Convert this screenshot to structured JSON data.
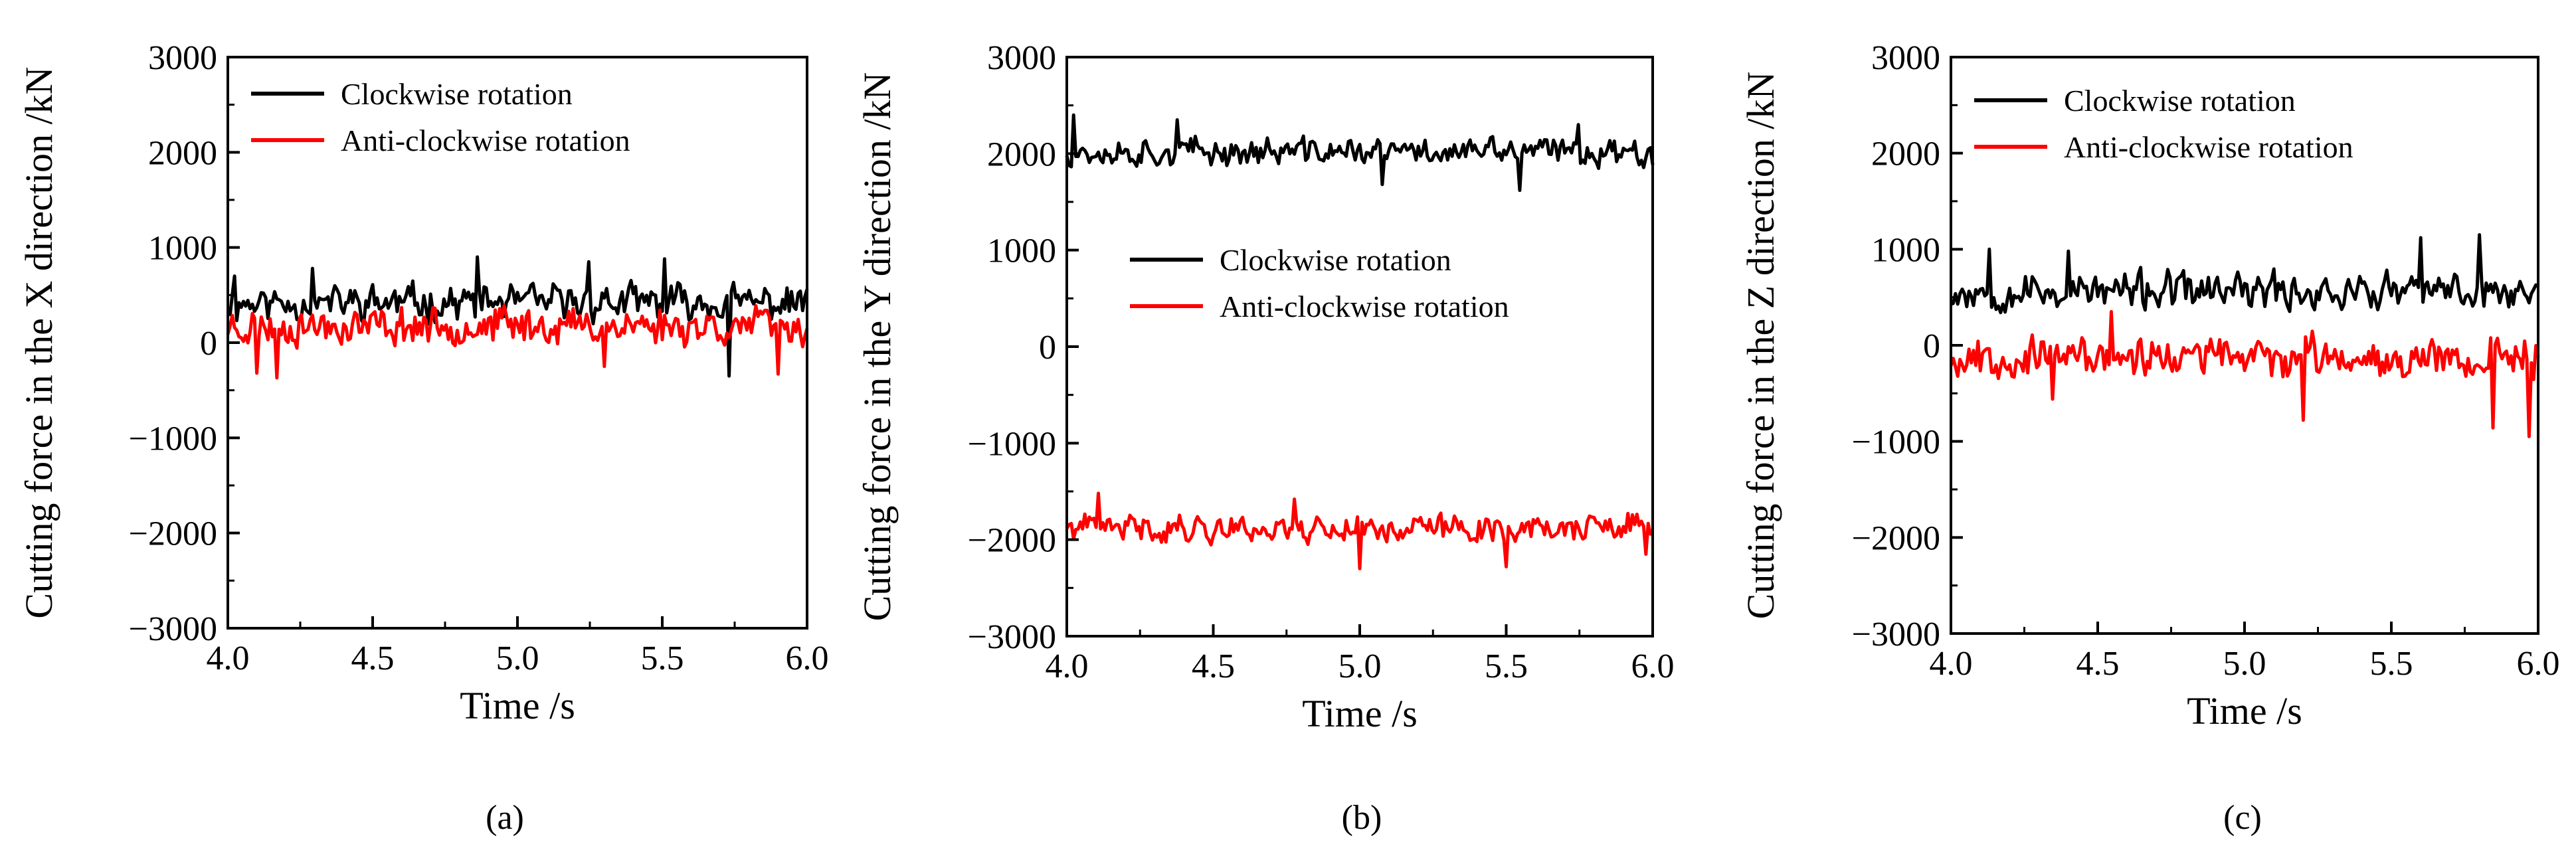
{
  "colors": {
    "clockwise": "#000000",
    "anticlockwise": "#ff0000"
  },
  "chart_data": [
    {
      "type": "line",
      "panel_label": "(a)",
      "xlabel": "Time /s",
      "ylabel": "Cutting force in the X direction /kN",
      "xlim": [
        4.0,
        6.0
      ],
      "ylim": [
        -3000,
        3000
      ],
      "xticks": [
        4.0,
        4.5,
        5.0,
        5.5,
        6.0
      ],
      "xtick_labels": [
        "4.0",
        "4.5",
        "5.0",
        "5.5",
        "6.0"
      ],
      "yticks": [
        -3000,
        -2000,
        -1000,
        0,
        1000,
        2000,
        3000
      ],
      "ytick_labels": [
        "−3000",
        "−2000",
        "−1000",
        "0",
        "1000",
        "2000",
        "3000"
      ],
      "legend_position": "top-left",
      "series": [
        {
          "name": "Clockwise rotation",
          "color": "#000000",
          "mean": 420,
          "noise": 220,
          "seed": 11,
          "spikes": [
            [
              4.02,
              700
            ],
            [
              4.29,
              780
            ],
            [
              4.86,
              900
            ],
            [
              5.25,
              850
            ],
            [
              5.51,
              880
            ],
            [
              5.73,
              -350
            ]
          ]
        },
        {
          "name": "Anti-clockwise rotation",
          "color": "#ff0000",
          "mean": 180,
          "noise": 230,
          "seed": 23,
          "spikes": [
            [
              4.1,
              -320
            ],
            [
              4.17,
              -370
            ],
            [
              5.3,
              -250
            ],
            [
              5.9,
              -330
            ]
          ]
        }
      ]
    },
    {
      "type": "line",
      "panel_label": "(b)",
      "xlabel": "Time /s",
      "ylabel": "Cutting force in the Y direction /kN",
      "xlim": [
        4.0,
        6.0
      ],
      "ylim": [
        -3000,
        3000
      ],
      "xticks": [
        4.0,
        4.5,
        5.0,
        5.5,
        6.0
      ],
      "xtick_labels": [
        "4.0",
        "4.5",
        "5.0",
        "5.5",
        "6.0"
      ],
      "yticks": [
        -3000,
        -2000,
        -1000,
        0,
        1000,
        2000,
        3000
      ],
      "ytick_labels": [
        "−3000",
        "−2000",
        "−1000",
        "0",
        "1000",
        "2000",
        "3000"
      ],
      "legend_position": "center",
      "series": [
        {
          "name": "Clockwise rotation",
          "color": "#000000",
          "mean": 2020,
          "noise": 170,
          "seed": 37,
          "spikes": [
            [
              4.02,
              2400
            ],
            [
              4.38,
              2350
            ],
            [
              5.08,
              1680
            ],
            [
              5.55,
              1620
            ],
            [
              5.75,
              2300
            ]
          ]
        },
        {
          "name": "Anti-clockwise rotation",
          "color": "#ff0000",
          "mean": -1880,
          "noise": 170,
          "seed": 41,
          "spikes": [
            [
              4.11,
              -1520
            ],
            [
              4.78,
              -1580
            ],
            [
              5.0,
              -2300
            ],
            [
              5.5,
              -2280
            ],
            [
              5.98,
              -2150
            ]
          ]
        }
      ]
    },
    {
      "type": "line",
      "panel_label": "(c)",
      "xlabel": "Time /s",
      "ylabel": "Cutting force in the Z direction /kN",
      "xlim": [
        4.0,
        6.0
      ],
      "ylim": [
        -3000,
        3000
      ],
      "xticks": [
        4.0,
        4.5,
        5.0,
        5.5,
        6.0
      ],
      "xtick_labels": [
        "4.0",
        "4.5",
        "5.0",
        "5.5",
        "6.0"
      ],
      "yticks": [
        -3000,
        -2000,
        -1000,
        0,
        1000,
        2000,
        3000
      ],
      "ytick_labels": [
        "−3000",
        "−2000",
        "−1000",
        "0",
        "1000",
        "2000",
        "3000"
      ],
      "legend_position": "top-left",
      "series": [
        {
          "name": "Clockwise rotation",
          "color": "#000000",
          "mean": 560,
          "noise": 230,
          "seed": 53,
          "spikes": [
            [
              4.13,
              1000
            ],
            [
              4.4,
              980
            ],
            [
              5.6,
              1120
            ],
            [
              5.8,
              1150
            ]
          ]
        },
        {
          "name": "Anti-clockwise rotation",
          "color": "#ff0000",
          "mean": -120,
          "noise": 240,
          "seed": 67,
          "spikes": [
            [
              4.35,
              -560
            ],
            [
              5.2,
              -780
            ],
            [
              5.85,
              -860
            ],
            [
              5.97,
              -950
            ],
            [
              4.55,
              350
            ]
          ]
        }
      ]
    }
  ]
}
